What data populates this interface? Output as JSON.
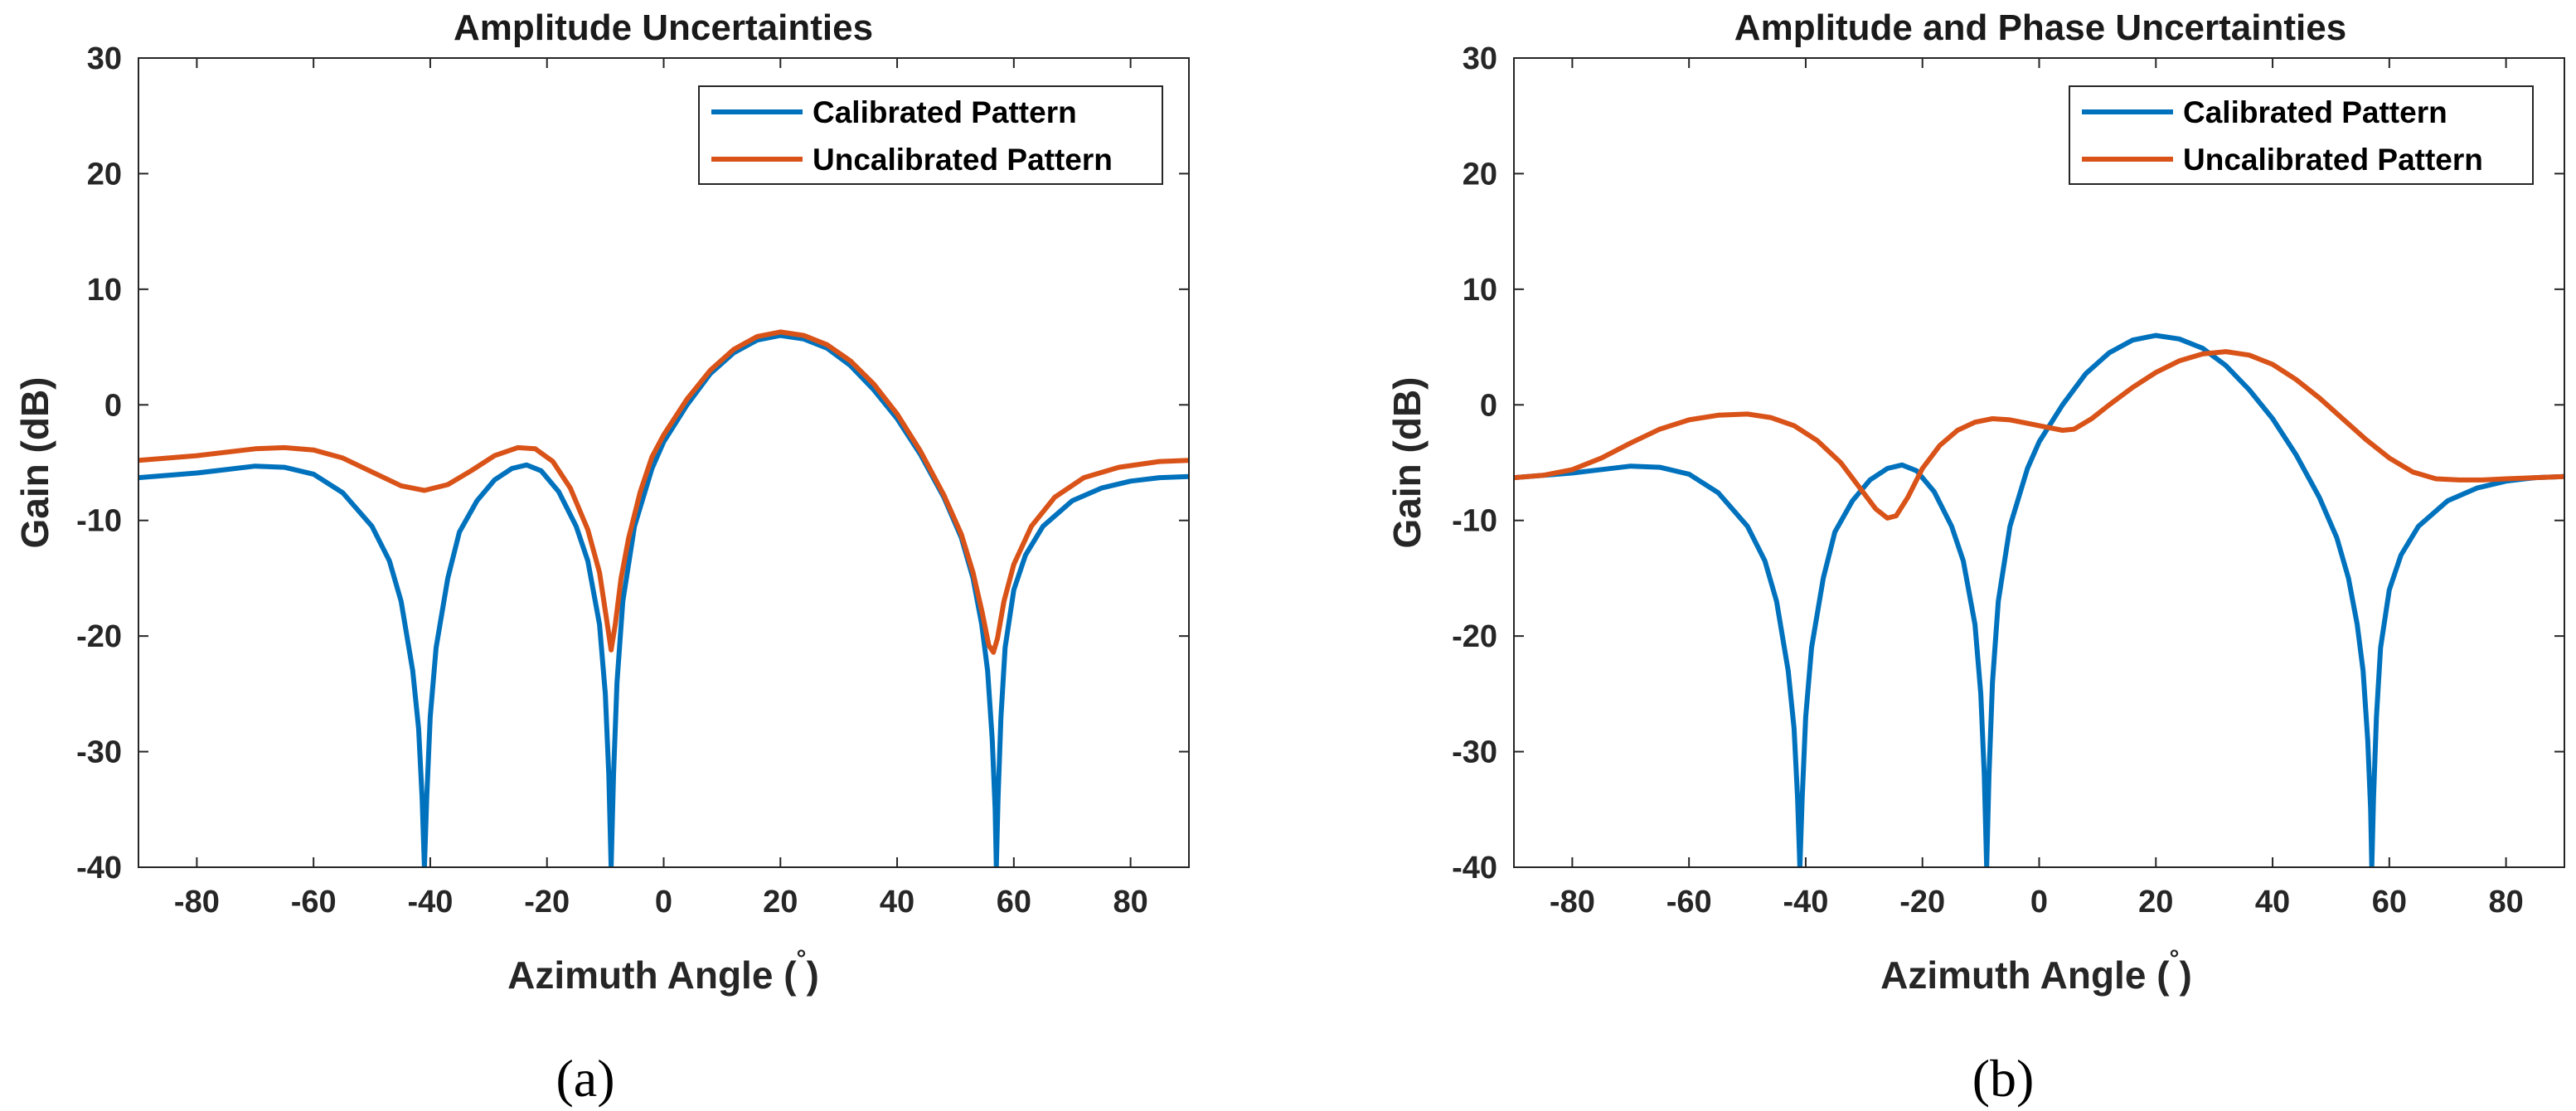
{
  "chart_data": [
    {
      "type": "line",
      "title": "Amplitude Uncertainties",
      "xlabel": "Azimuth Angle (",
      "xlabel_degree": "°",
      "xlabel_close": ")",
      "ylabel": "Gain (dB)",
      "xlim": [
        -90,
        90
      ],
      "ylim": [
        -40,
        30
      ],
      "xticks": [
        -80,
        -60,
        -40,
        -20,
        0,
        20,
        40,
        60,
        80
      ],
      "yticks": [
        -40,
        -30,
        -20,
        -10,
        0,
        10,
        20,
        30
      ],
      "legend_position": "top-right",
      "caption": "(a)",
      "series": [
        {
          "name": "Calibrated Pattern",
          "color": "#0072BD",
          "points": [
            [
              -90,
              -6.3
            ],
            [
              -80,
              -5.9
            ],
            [
              -70,
              -5.3
            ],
            [
              -65,
              -5.4
            ],
            [
              -60,
              -6.0
            ],
            [
              -55,
              -7.6
            ],
            [
              -50,
              -10.5
            ],
            [
              -47,
              -13.5
            ],
            [
              -45,
              -17.0
            ],
            [
              -43,
              -23.0
            ],
            [
              -42,
              -28.0
            ],
            [
              -41.4,
              -34.0
            ],
            [
              -41,
              -40
            ],
            [
              -40.6,
              -34.0
            ],
            [
              -40,
              -27.0
            ],
            [
              -39,
              -21.0
            ],
            [
              -37,
              -15.0
            ],
            [
              -35,
              -11.0
            ],
            [
              -32,
              -8.3
            ],
            [
              -29,
              -6.5
            ],
            [
              -26,
              -5.5
            ],
            [
              -23.5,
              -5.2
            ],
            [
              -21,
              -5.7
            ],
            [
              -18,
              -7.5
            ],
            [
              -15,
              -10.5
            ],
            [
              -13,
              -13.5
            ],
            [
              -11,
              -19.0
            ],
            [
              -10,
              -25.0
            ],
            [
              -9.4,
              -32.0
            ],
            [
              -9,
              -40
            ],
            [
              -8.6,
              -32.0
            ],
            [
              -8,
              -24.0
            ],
            [
              -7,
              -17.0
            ],
            [
              -5,
              -10.5
            ],
            [
              -2,
              -5.5
            ],
            [
              0,
              -3.2
            ],
            [
              4,
              0.0
            ],
            [
              8,
              2.7
            ],
            [
              12,
              4.5
            ],
            [
              16,
              5.6
            ],
            [
              20,
              6.0
            ],
            [
              24,
              5.7
            ],
            [
              28,
              4.9
            ],
            [
              32,
              3.4
            ],
            [
              36,
              1.3
            ],
            [
              40,
              -1.2
            ],
            [
              44,
              -4.3
            ],
            [
              48,
              -8.0
            ],
            [
              51,
              -11.5
            ],
            [
              53,
              -15.0
            ],
            [
              54.5,
              -19.0
            ],
            [
              55.5,
              -23.0
            ],
            [
              56.3,
              -29.0
            ],
            [
              56.8,
              -35.0
            ],
            [
              57,
              -40
            ],
            [
              57.3,
              -34.0
            ],
            [
              57.8,
              -27.0
            ],
            [
              58.5,
              -21.0
            ],
            [
              60,
              -16.0
            ],
            [
              62,
              -13.0
            ],
            [
              65,
              -10.5
            ],
            [
              70,
              -8.3
            ],
            [
              75,
              -7.2
            ],
            [
              80,
              -6.6
            ],
            [
              85,
              -6.3
            ],
            [
              90,
              -6.2
            ]
          ]
        },
        {
          "name": "Uncalibrated Pattern",
          "color": "#D95319",
          "points": [
            [
              -90,
              -4.8
            ],
            [
              -80,
              -4.4
            ],
            [
              -70,
              -3.8
            ],
            [
              -65,
              -3.7
            ],
            [
              -60,
              -3.9
            ],
            [
              -55,
              -4.6
            ],
            [
              -50,
              -5.8
            ],
            [
              -45,
              -7.0
            ],
            [
              -41,
              -7.4
            ],
            [
              -37,
              -6.9
            ],
            [
              -33,
              -5.7
            ],
            [
              -29,
              -4.4
            ],
            [
              -25,
              -3.7
            ],
            [
              -22,
              -3.8
            ],
            [
              -19,
              -4.9
            ],
            [
              -16,
              -7.2
            ],
            [
              -13,
              -10.8
            ],
            [
              -11,
              -14.5
            ],
            [
              -9.8,
              -18.5
            ],
            [
              -9,
              -21.2
            ],
            [
              -8.3,
              -19.0
            ],
            [
              -7.3,
              -15.0
            ],
            [
              -6,
              -11.5
            ],
            [
              -4,
              -7.5
            ],
            [
              -2,
              -4.5
            ],
            [
              0,
              -2.6
            ],
            [
              4,
              0.5
            ],
            [
              8,
              3.0
            ],
            [
              12,
              4.8
            ],
            [
              16,
              5.9
            ],
            [
              20,
              6.3
            ],
            [
              24,
              6.0
            ],
            [
              28,
              5.2
            ],
            [
              32,
              3.8
            ],
            [
              36,
              1.8
            ],
            [
              40,
              -0.8
            ],
            [
              44,
              -4.0
            ],
            [
              48,
              -7.8
            ],
            [
              51,
              -11.2
            ],
            [
              53,
              -14.5
            ],
            [
              54.6,
              -18.0
            ],
            [
              55.7,
              -20.8
            ],
            [
              56.5,
              -21.4
            ],
            [
              57.2,
              -20.2
            ],
            [
              58.3,
              -17.0
            ],
            [
              60,
              -13.8
            ],
            [
              63,
              -10.5
            ],
            [
              67,
              -8.0
            ],
            [
              72,
              -6.3
            ],
            [
              78,
              -5.4
            ],
            [
              85,
              -4.9
            ],
            [
              90,
              -4.8
            ]
          ]
        }
      ]
    },
    {
      "type": "line",
      "title": "Amplitude and Phase Uncertainties",
      "xlabel": "Azimuth Angle (",
      "xlabel_degree": "°",
      "xlabel_close": ")",
      "ylabel": "Gain (dB)",
      "xlim": [
        -90,
        90
      ],
      "ylim": [
        -40,
        30
      ],
      "xticks": [
        -80,
        -60,
        -40,
        -20,
        0,
        20,
        40,
        60,
        80
      ],
      "yticks": [
        -40,
        -30,
        -20,
        -10,
        0,
        10,
        20,
        30
      ],
      "legend_position": "top-right",
      "caption": "(b)",
      "series": [
        {
          "name": "Calibrated Pattern",
          "color": "#0072BD",
          "points": [
            [
              -90,
              -6.3
            ],
            [
              -80,
              -5.9
            ],
            [
              -70,
              -5.3
            ],
            [
              -65,
              -5.4
            ],
            [
              -60,
              -6.0
            ],
            [
              -55,
              -7.6
            ],
            [
              -50,
              -10.5
            ],
            [
              -47,
              -13.5
            ],
            [
              -45,
              -17.0
            ],
            [
              -43,
              -23.0
            ],
            [
              -42,
              -28.0
            ],
            [
              -41.4,
              -34.0
            ],
            [
              -41,
              -40
            ],
            [
              -40.6,
              -34.0
            ],
            [
              -40,
              -27.0
            ],
            [
              -39,
              -21.0
            ],
            [
              -37,
              -15.0
            ],
            [
              -35,
              -11.0
            ],
            [
              -32,
              -8.3
            ],
            [
              -29,
              -6.5
            ],
            [
              -26,
              -5.5
            ],
            [
              -23.5,
              -5.2
            ],
            [
              -21,
              -5.7
            ],
            [
              -18,
              -7.5
            ],
            [
              -15,
              -10.5
            ],
            [
              -13,
              -13.5
            ],
            [
              -11,
              -19.0
            ],
            [
              -10,
              -25.0
            ],
            [
              -9.4,
              -32.0
            ],
            [
              -9,
              -40
            ],
            [
              -8.6,
              -32.0
            ],
            [
              -8,
              -24.0
            ],
            [
              -7,
              -17.0
            ],
            [
              -5,
              -10.5
            ],
            [
              -2,
              -5.5
            ],
            [
              0,
              -3.2
            ],
            [
              4,
              0.0
            ],
            [
              8,
              2.7
            ],
            [
              12,
              4.5
            ],
            [
              16,
              5.6
            ],
            [
              20,
              6.0
            ],
            [
              24,
              5.7
            ],
            [
              28,
              4.9
            ],
            [
              32,
              3.4
            ],
            [
              36,
              1.3
            ],
            [
              40,
              -1.2
            ],
            [
              44,
              -4.3
            ],
            [
              48,
              -8.0
            ],
            [
              51,
              -11.5
            ],
            [
              53,
              -15.0
            ],
            [
              54.5,
              -19.0
            ],
            [
              55.5,
              -23.0
            ],
            [
              56.3,
              -29.0
            ],
            [
              56.8,
              -35.0
            ],
            [
              57,
              -40
            ],
            [
              57.3,
              -34.0
            ],
            [
              57.8,
              -27.0
            ],
            [
              58.5,
              -21.0
            ],
            [
              60,
              -16.0
            ],
            [
              62,
              -13.0
            ],
            [
              65,
              -10.5
            ],
            [
              70,
              -8.3
            ],
            [
              75,
              -7.2
            ],
            [
              80,
              -6.6
            ],
            [
              85,
              -6.3
            ],
            [
              90,
              -6.2
            ]
          ]
        },
        {
          "name": "Uncalibrated Pattern",
          "color": "#D95319",
          "points": [
            [
              -90,
              -6.3
            ],
            [
              -85,
              -6.1
            ],
            [
              -80,
              -5.6
            ],
            [
              -75,
              -4.6
            ],
            [
              -70,
              -3.3
            ],
            [
              -65,
              -2.1
            ],
            [
              -60,
              -1.3
            ],
            [
              -55,
              -0.9
            ],
            [
              -50,
              -0.8
            ],
            [
              -46,
              -1.1
            ],
            [
              -42,
              -1.8
            ],
            [
              -38,
              -3.1
            ],
            [
              -34,
              -5.0
            ],
            [
              -31,
              -7.0
            ],
            [
              -28,
              -9.0
            ],
            [
              -26,
              -9.8
            ],
            [
              -24.5,
              -9.6
            ],
            [
              -22.5,
              -8.0
            ],
            [
              -20,
              -5.5
            ],
            [
              -17,
              -3.5
            ],
            [
              -14,
              -2.2
            ],
            [
              -11,
              -1.5
            ],
            [
              -8,
              -1.2
            ],
            [
              -5,
              -1.3
            ],
            [
              -2,
              -1.6
            ],
            [
              1,
              -1.9
            ],
            [
              4,
              -2.2
            ],
            [
              6,
              -2.1
            ],
            [
              9,
              -1.2
            ],
            [
              12,
              0.0
            ],
            [
              16,
              1.5
            ],
            [
              20,
              2.8
            ],
            [
              24,
              3.8
            ],
            [
              28,
              4.4
            ],
            [
              32,
              4.6
            ],
            [
              36,
              4.3
            ],
            [
              40,
              3.5
            ],
            [
              44,
              2.2
            ],
            [
              48,
              0.6
            ],
            [
              52,
              -1.2
            ],
            [
              56,
              -3.0
            ],
            [
              60,
              -4.6
            ],
            [
              64,
              -5.8
            ],
            [
              68,
              -6.4
            ],
            [
              72,
              -6.5
            ],
            [
              76,
              -6.5
            ],
            [
              80,
              -6.4
            ],
            [
              85,
              -6.3
            ],
            [
              90,
              -6.2
            ]
          ]
        }
      ]
    }
  ]
}
